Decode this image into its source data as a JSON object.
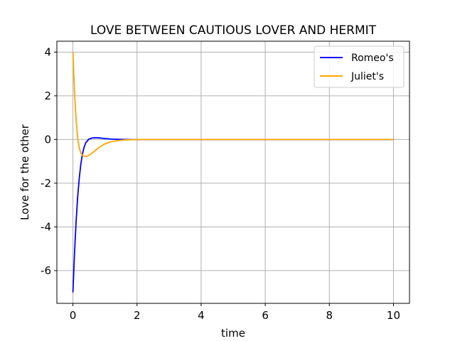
{
  "chart_data": {
    "type": "line",
    "title": "LOVE BETWEEN CAUTIOUS LOVER AND HERMIT",
    "xlabel": "time",
    "ylabel": "Love for the other",
    "xlim": [
      -0.5,
      10.5
    ],
    "ylim": [
      -7.5,
      4.5
    ],
    "x_ticks": [
      0,
      2,
      4,
      6,
      8,
      10
    ],
    "x_tick_labels": [
      "0",
      "2",
      "4",
      "6",
      "8",
      "10"
    ],
    "y_ticks": [
      -6,
      -4,
      -2,
      0,
      2,
      4
    ],
    "y_tick_labels": [
      "-6",
      "-4",
      "-2",
      "0",
      "2",
      "4"
    ],
    "grid": true,
    "legend_position": "top-right",
    "series": [
      {
        "name": "Romeo's",
        "color": "#0000ff",
        "x": [
          0,
          0.05,
          0.1,
          0.15,
          0.2,
          0.25,
          0.3,
          0.35,
          0.4,
          0.5,
          0.6,
          0.7,
          0.8,
          0.9,
          1.0,
          1.2,
          1.4,
          1.6,
          1.8,
          2.0,
          3,
          4,
          5,
          6,
          7,
          8,
          9,
          10
        ],
        "y": [
          -7.0,
          -5.2,
          -3.75,
          -2.6,
          -1.75,
          -1.1,
          -0.65,
          -0.35,
          -0.15,
          0.02,
          0.07,
          0.08,
          0.075,
          0.06,
          0.045,
          0.02,
          0.008,
          0.002,
          0.0,
          0.0,
          0.0,
          0.0,
          0.0,
          0.0,
          0.0,
          0.0,
          0.0,
          0.0
        ]
      },
      {
        "name": "Juliet's",
        "color": "#ffa500",
        "x": [
          0,
          0.03,
          0.06,
          0.1,
          0.15,
          0.2,
          0.25,
          0.3,
          0.35,
          0.4,
          0.45,
          0.5,
          0.6,
          0.7,
          0.8,
          0.9,
          1.0,
          1.2,
          1.4,
          1.6,
          1.8,
          2.0,
          3,
          4,
          5,
          6,
          7,
          8,
          9,
          10
        ],
        "y": [
          4.0,
          2.9,
          1.9,
          0.9,
          0.05,
          -0.4,
          -0.62,
          -0.72,
          -0.76,
          -0.77,
          -0.76,
          -0.72,
          -0.62,
          -0.5,
          -0.38,
          -0.28,
          -0.2,
          -0.1,
          -0.05,
          -0.02,
          -0.01,
          0.0,
          0.0,
          0.0,
          0.0,
          0.0,
          0.0,
          0.0,
          0.0,
          0.0
        ]
      }
    ]
  }
}
